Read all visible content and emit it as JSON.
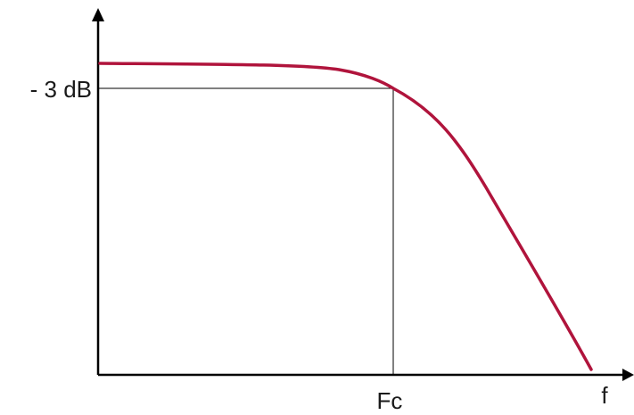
{
  "diagram": {
    "y_marker_label": "- 3 dB",
    "x_marker_label": "Fc",
    "x_axis_label": "f",
    "colors": {
      "curve": "#b0143c",
      "axes": "#000000",
      "guides": "#000000",
      "text": "#1a1a1a"
    }
  }
}
